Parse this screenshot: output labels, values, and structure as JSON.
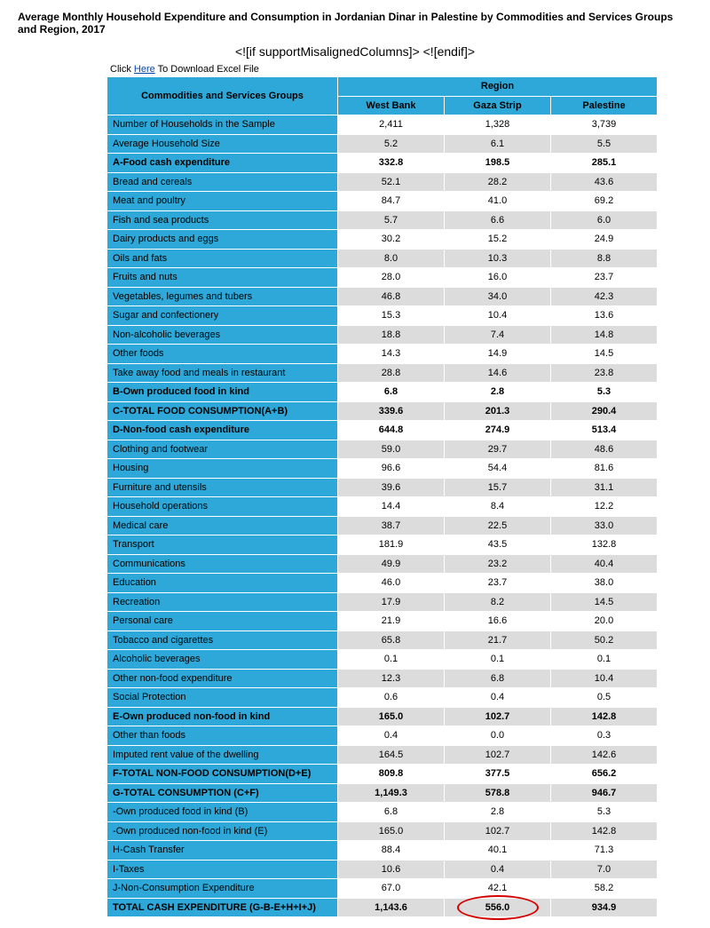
{
  "title": "Average Monthly Household Expenditure and Consumption in Jordanian Dinar in Palestine by Commodities and Services Groups and Region, 2017",
  "conditional_text": "<![if supportMisalignedColumns]> <![endif]>",
  "download_prefix": "Click ",
  "download_link": "Here",
  "download_suffix": " To Download Excel File",
  "header": {
    "rowhead": "Commodities and Services Groups",
    "region": "Region",
    "cols": [
      "West Bank",
      "Gaza Strip",
      "Palestine"
    ]
  },
  "colors": {
    "header_bg": "#2ea8d8",
    "row_alt_bg": "#dcdcdc",
    "row_bg": "#ffffff",
    "circle": "#d40000"
  },
  "rows": [
    {
      "label": "Number of Households in the Sample",
      "v": [
        "2,411",
        "1,328",
        "3,739"
      ],
      "bold": false
    },
    {
      "label": "Average Household Size",
      "v": [
        "5.2",
        "6.1",
        "5.5"
      ],
      "bold": false
    },
    {
      "label": "A-Food cash expenditure",
      "v": [
        "332.8",
        "198.5",
        "285.1"
      ],
      "bold": true
    },
    {
      "label": "Bread and cereals",
      "v": [
        "52.1",
        "28.2",
        "43.6"
      ],
      "bold": false
    },
    {
      "label": "Meat and poultry",
      "v": [
        "84.7",
        "41.0",
        "69.2"
      ],
      "bold": false
    },
    {
      "label": "Fish and sea products",
      "v": [
        "5.7",
        "6.6",
        "6.0"
      ],
      "bold": false
    },
    {
      "label": "Dairy products and eggs",
      "v": [
        "30.2",
        "15.2",
        "24.9"
      ],
      "bold": false
    },
    {
      "label": "Oils and fats",
      "v": [
        "8.0",
        "10.3",
        "8.8"
      ],
      "bold": false
    },
    {
      "label": "Fruits and nuts",
      "v": [
        "28.0",
        "16.0",
        "23.7"
      ],
      "bold": false
    },
    {
      "label": "Vegetables, legumes and tubers",
      "v": [
        "46.8",
        "34.0",
        "42.3"
      ],
      "bold": false
    },
    {
      "label": "Sugar and confectionery",
      "v": [
        "15.3",
        "10.4",
        "13.6"
      ],
      "bold": false
    },
    {
      "label": "Non-alcoholic beverages",
      "v": [
        "18.8",
        "7.4",
        "14.8"
      ],
      "bold": false
    },
    {
      "label": "Other foods",
      "v": [
        "14.3",
        "14.9",
        "14.5"
      ],
      "bold": false
    },
    {
      "label": "Take away food and meals in restaurant",
      "v": [
        "28.8",
        "14.6",
        "23.8"
      ],
      "bold": false
    },
    {
      "label": "B-Own produced food in kind",
      "v": [
        "6.8",
        "2.8",
        "5.3"
      ],
      "bold": true
    },
    {
      "label": "C-TOTAL FOOD CONSUMPTION(A+B)",
      "v": [
        "339.6",
        "201.3",
        "290.4"
      ],
      "bold": true
    },
    {
      "label": "D-Non-food cash expenditure",
      "v": [
        "644.8",
        "274.9",
        "513.4"
      ],
      "bold": true
    },
    {
      "label": "Clothing and footwear",
      "v": [
        "59.0",
        "29.7",
        "48.6"
      ],
      "bold": false
    },
    {
      "label": "Housing",
      "v": [
        "96.6",
        "54.4",
        "81.6"
      ],
      "bold": false
    },
    {
      "label": "Furniture and utensils",
      "v": [
        "39.6",
        "15.7",
        "31.1"
      ],
      "bold": false
    },
    {
      "label": "Household operations",
      "v": [
        "14.4",
        "8.4",
        "12.2"
      ],
      "bold": false
    },
    {
      "label": "Medical care",
      "v": [
        "38.7",
        "22.5",
        "33.0"
      ],
      "bold": false
    },
    {
      "label": "Transport",
      "v": [
        "181.9",
        "43.5",
        "132.8"
      ],
      "bold": false
    },
    {
      "label": "Communications",
      "v": [
        "49.9",
        "23.2",
        "40.4"
      ],
      "bold": false
    },
    {
      "label": "Education",
      "v": [
        "46.0",
        "23.7",
        "38.0"
      ],
      "bold": false
    },
    {
      "label": "Recreation",
      "v": [
        "17.9",
        "8.2",
        "14.5"
      ],
      "bold": false
    },
    {
      "label": "Personal care",
      "v": [
        "21.9",
        "16.6",
        "20.0"
      ],
      "bold": false
    },
    {
      "label": "Tobacco and cigarettes",
      "v": [
        "65.8",
        "21.7",
        "50.2"
      ],
      "bold": false
    },
    {
      "label": "Alcoholic beverages",
      "v": [
        "0.1",
        "0.1",
        "0.1"
      ],
      "bold": false
    },
    {
      "label": "Other non-food expenditure",
      "v": [
        "12.3",
        "6.8",
        "10.4"
      ],
      "bold": false
    },
    {
      "label": "Social Protection",
      "v": [
        "0.6",
        "0.4",
        "0.5"
      ],
      "bold": false
    },
    {
      "label": "E-Own produced non-food in kind",
      "v": [
        "165.0",
        "102.7",
        "142.8"
      ],
      "bold": true
    },
    {
      "label": "Other than foods",
      "v": [
        "0.4",
        "0.0",
        "0.3"
      ],
      "bold": false
    },
    {
      "label": "Imputed rent value of the dwelling",
      "v": [
        "164.5",
        "102.7",
        "142.6"
      ],
      "bold": false
    },
    {
      "label": "F-TOTAL NON-FOOD CONSUMPTION(D+E)",
      "v": [
        "809.8",
        "377.5",
        "656.2"
      ],
      "bold": true
    },
    {
      "label": "G-TOTAL CONSUMPTION (C+F)",
      "v": [
        "1,149.3",
        "578.8",
        "946.7"
      ],
      "bold": true
    },
    {
      "label": "-Own produced food in kind (B)",
      "v": [
        "6.8",
        "2.8",
        "5.3"
      ],
      "bold": false
    },
    {
      "label": "-Own produced non-food in kind (E)",
      "v": [
        "165.0",
        "102.7",
        "142.8"
      ],
      "bold": false
    },
    {
      "label": "H-Cash Transfer",
      "v": [
        "88.4",
        "40.1",
        "71.3"
      ],
      "bold": false
    },
    {
      "label": "I-Taxes",
      "v": [
        "10.6",
        "0.4",
        "7.0"
      ],
      "bold": false
    },
    {
      "label": "J-Non-Consumption Expenditure",
      "v": [
        "67.0",
        "42.1",
        "58.2"
      ],
      "bold": false
    },
    {
      "label": "TOTAL CASH EXPENDITURE (G-B-E+H+I+J)",
      "v": [
        "1,143.6",
        "556.0",
        "934.9"
      ],
      "bold": true
    }
  ],
  "circle_target": {
    "row": 41,
    "col": 1
  }
}
